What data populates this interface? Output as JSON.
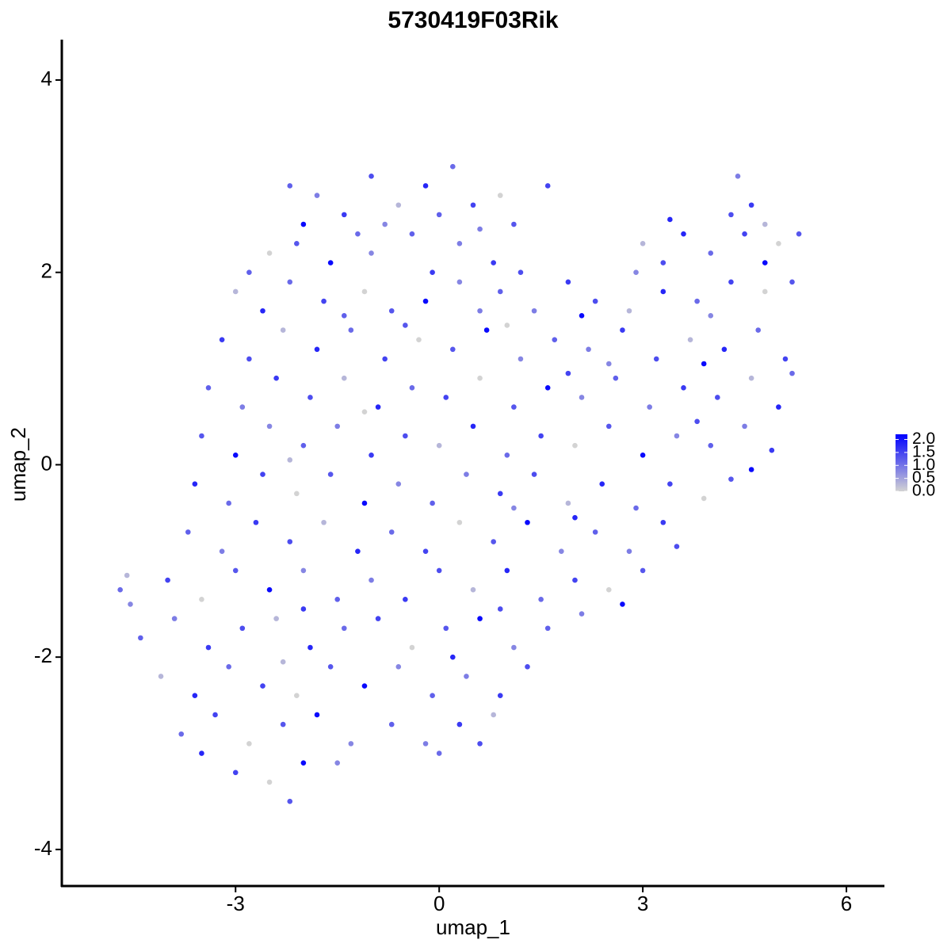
{
  "chart_data": {
    "type": "scatter",
    "title": "5730419F03Rik",
    "x_label": "umap_1",
    "y_label": "umap_2",
    "xlim": [
      -5.56,
      6.56
    ],
    "ylim": [
      -4.38,
      4.42
    ],
    "xticks": [
      -3,
      0,
      3,
      6
    ],
    "yticks": [
      -4,
      -2,
      0,
      2,
      4
    ],
    "color_low": "#d3d3d3",
    "color_high": "#0000ff",
    "clim": [
      0,
      2.2
    ],
    "cticks": [
      {
        "value": 0,
        "label": "0.0"
      },
      {
        "value": 0.5,
        "label": "0.5"
      },
      {
        "value": 1,
        "label": "1.0"
      },
      {
        "value": 1.5,
        "label": "1.5"
      },
      {
        "value": 2,
        "label": "2.0"
      }
    ],
    "x": [
      -2.2,
      -1.8,
      -1.4,
      -1.0,
      -0.6,
      -0.2,
      0.2,
      0.5,
      0.9,
      1.1,
      -2.0,
      -0.8,
      0.0,
      4.4,
      4.6,
      4.3,
      4.8,
      3.4,
      -1.2,
      1.6,
      -2.5,
      -2.1,
      -1.6,
      -1.0,
      -0.4,
      0.3,
      0.8,
      1.2,
      3.0,
      3.6,
      4.0,
      4.5,
      5.0,
      5.3,
      4.8,
      2.9,
      -2.8,
      0.6,
      -0.1,
      3.3,
      -3.0,
      -2.6,
      -2.2,
      -1.7,
      -1.1,
      -0.7,
      -0.2,
      0.3,
      0.9,
      1.4,
      1.9,
      2.3,
      2.8,
      3.3,
      3.8,
      4.3,
      4.8,
      5.2,
      2.1,
      4.0,
      -1.4,
      0.6,
      -3.2,
      -2.8,
      -2.3,
      -1.8,
      -1.3,
      -0.8,
      -0.3,
      0.2,
      0.7,
      1.2,
      1.7,
      2.2,
      2.7,
      3.2,
      3.7,
      4.2,
      4.7,
      5.1,
      1.0,
      -0.5,
      3.9,
      2.5,
      -3.4,
      -2.9,
      -2.4,
      -1.9,
      -1.4,
      -0.9,
      -0.4,
      0.1,
      0.6,
      1.1,
      1.6,
      2.1,
      2.6,
      3.1,
      3.6,
      4.1,
      4.6,
      5.0,
      5.2,
      1.9,
      -1.1,
      -3.5,
      -3.0,
      -2.5,
      -2.0,
      -1.5,
      -1.0,
      -0.5,
      0.0,
      0.5,
      1.0,
      1.5,
      2.0,
      2.5,
      3.0,
      3.5,
      4.0,
      4.5,
      4.9,
      3.8,
      -2.2,
      -3.6,
      -3.1,
      -2.6,
      -2.1,
      -1.6,
      -1.1,
      -0.6,
      -0.1,
      0.4,
      0.9,
      1.4,
      1.9,
      2.4,
      2.9,
      3.4,
      3.9,
      4.3,
      4.6,
      1.1,
      -3.7,
      -3.2,
      -2.7,
      -2.2,
      -1.7,
      -1.2,
      -0.7,
      -0.2,
      0.3,
      0.8,
      1.3,
      1.8,
      2.3,
      2.8,
      3.3,
      3.5,
      -4.6,
      2.0,
      -4.7,
      -4.0,
      -3.5,
      -3.0,
      -2.5,
      -2.0,
      -1.5,
      -1.0,
      -0.5,
      0.0,
      0.5,
      1.0,
      1.5,
      2.0,
      2.5,
      3.0,
      2.7,
      -4.55,
      -4.4,
      -3.9,
      -3.4,
      -2.9,
      -2.4,
      -1.9,
      -1.4,
      -0.9,
      -0.4,
      0.1,
      0.6,
      1.1,
      1.6,
      2.1,
      -2.0,
      0.9,
      -4.1,
      -3.6,
      -3.1,
      -2.6,
      -2.1,
      -1.6,
      -1.1,
      -0.6,
      -0.1,
      0.4,
      0.9,
      1.3,
      -2.3,
      0.2,
      -3.8,
      -3.3,
      -2.8,
      -2.3,
      -1.8,
      -1.3,
      -0.7,
      -0.2,
      0.3,
      0.6,
      0.8,
      -3.5,
      0.0,
      -3.0,
      -2.5,
      -2.2,
      -2.0,
      -1.5
    ],
    "y": [
      2.9,
      2.8,
      2.6,
      3.0,
      2.7,
      2.9,
      3.1,
      2.7,
      2.8,
      2.5,
      2.5,
      2.5,
      2.6,
      3.0,
      2.7,
      2.6,
      2.5,
      2.55,
      2.4,
      2.9,
      2.2,
      2.3,
      2.1,
      2.2,
      2.4,
      2.3,
      2.1,
      2.0,
      2.3,
      2.4,
      2.2,
      2.4,
      2.3,
      2.4,
      2.1,
      2.0,
      2.0,
      2.45,
      2.0,
      2.1,
      1.8,
      1.6,
      1.9,
      1.7,
      1.8,
      1.6,
      1.7,
      1.9,
      1.8,
      1.6,
      1.9,
      1.7,
      1.6,
      1.8,
      1.7,
      1.9,
      1.8,
      1.9,
      1.55,
      1.55,
      1.55,
      1.6,
      1.3,
      1.1,
      1.4,
      1.2,
      1.4,
      1.1,
      1.3,
      1.2,
      1.4,
      1.1,
      1.3,
      1.2,
      1.4,
      1.1,
      1.3,
      1.2,
      1.4,
      1.1,
      1.45,
      1.45,
      1.05,
      1.05,
      0.8,
      0.6,
      0.9,
      0.7,
      0.9,
      0.6,
      0.8,
      0.7,
      0.9,
      0.6,
      0.8,
      0.7,
      0.9,
      0.6,
      0.8,
      0.7,
      0.9,
      0.6,
      0.95,
      0.95,
      0.55,
      0.3,
      0.1,
      0.4,
      0.2,
      0.4,
      0.1,
      0.3,
      0.2,
      0.4,
      0.1,
      0.3,
      0.2,
      0.4,
      0.1,
      0.3,
      0.2,
      0.4,
      0.15,
      0.45,
      0.05,
      -0.2,
      -0.4,
      -0.1,
      -0.3,
      -0.1,
      -0.4,
      -0.2,
      -0.4,
      -0.1,
      -0.3,
      -0.1,
      -0.4,
      -0.2,
      -0.45,
      -0.2,
      -0.35,
      -0.15,
      -0.05,
      -0.45,
      -0.7,
      -0.9,
      -0.6,
      -0.8,
      -0.6,
      -0.9,
      -0.7,
      -0.9,
      -0.6,
      -0.8,
      -0.6,
      -0.9,
      -0.7,
      -0.9,
      -0.6,
      -0.85,
      -1.15,
      -0.55,
      -1.3,
      -1.2,
      -1.4,
      -1.1,
      -1.3,
      -1.1,
      -1.4,
      -1.2,
      -1.4,
      -1.1,
      -1.3,
      -1.1,
      -1.4,
      -1.2,
      -1.3,
      -1.1,
      -1.45,
      -1.45,
      -1.8,
      -1.6,
      -1.9,
      -1.7,
      -1.6,
      -1.9,
      -1.7,
      -1.6,
      -1.9,
      -1.7,
      -1.6,
      -1.9,
      -1.7,
      -1.55,
      -1.5,
      -1.5,
      -2.2,
      -2.4,
      -2.1,
      -2.3,
      -2.4,
      -2.1,
      -2.3,
      -2.1,
      -2.4,
      -2.2,
      -2.4,
      -2.1,
      -2.05,
      -2.0,
      -2.8,
      -2.6,
      -2.9,
      -2.7,
      -2.6,
      -2.9,
      -2.7,
      -2.9,
      -2.7,
      -2.9,
      -2.6,
      -3.0,
      -3.0,
      -3.2,
      -3.3,
      -3.5,
      -3.1,
      -3.1
    ],
    "values": [
      1.2,
      0.9,
      1.6,
      1.4,
      0.3,
      1.8,
      1.1,
      1.5,
      0,
      1.3,
      2.1,
      0.8,
      1.2,
      0.9,
      1.6,
      1.4,
      0.3,
      1.8,
      1.1,
      1.5,
      0,
      1.3,
      2.1,
      0.8,
      1.2,
      0.9,
      1.6,
      1.4,
      0.3,
      1.8,
      1.1,
      1.5,
      0,
      1.3,
      2.1,
      0.8,
      1.2,
      0.9,
      1.6,
      1.4,
      0.3,
      1.8,
      1.1,
      1.5,
      0,
      1.3,
      2.1,
      0.8,
      1.2,
      0.9,
      1.6,
      1.4,
      0.3,
      1.8,
      1.1,
      1.5,
      0,
      1.3,
      2.1,
      0.8,
      1.2,
      0.9,
      1.6,
      1.4,
      0.3,
      1.8,
      1.1,
      1.5,
      0,
      1.3,
      2.1,
      0.8,
      1.2,
      0.9,
      1.6,
      1.4,
      0.3,
      1.8,
      1.1,
      1.5,
      0,
      1.3,
      2.1,
      0.8,
      1.2,
      0.9,
      1.6,
      1.4,
      0.3,
      1.8,
      1.1,
      1.5,
      0,
      1.3,
      2.1,
      0.8,
      1.2,
      0.9,
      1.6,
      1.4,
      0.3,
      1.8,
      1.1,
      1.5,
      0,
      1.3,
      2.1,
      0.8,
      1.2,
      0.9,
      1.6,
      1.4,
      0.3,
      1.8,
      1.1,
      1.5,
      0,
      1.3,
      2.1,
      0.8,
      1.2,
      0.9,
      1.6,
      1.4,
      0.3,
      1.8,
      1.1,
      1.5,
      0,
      1.3,
      2.1,
      0.8,
      1.2,
      0.9,
      1.6,
      1.4,
      0.3,
      1.8,
      1.1,
      1.5,
      0,
      1.3,
      2.1,
      0.8,
      1.2,
      0.9,
      1.6,
      1.4,
      0.3,
      1.8,
      1.1,
      1.5,
      0,
      1.3,
      2.1,
      0.8,
      1.2,
      0.9,
      1.6,
      1.4,
      0.3,
      1.8,
      1.1,
      1.5,
      0,
      1.3,
      2.1,
      0.8,
      1.2,
      0.9,
      1.6,
      1.4,
      0.3,
      1.8,
      1.1,
      1.5,
      0,
      1.3,
      2.1,
      0.8,
      1.2,
      0.9,
      1.6,
      1.4,
      0.3,
      1.8,
      1.1,
      1.5,
      0,
      1.3,
      2.1,
      0.8,
      1.2,
      0.9,
      1.6,
      1.4,
      0.3,
      1.8,
      1.1,
      1.5,
      0,
      1.3,
      2.1,
      0.8,
      1.2,
      0.9,
      1.6,
      1.4,
      0.3,
      1.8,
      1.1,
      1.5,
      0,
      1.3,
      2.1,
      0.8,
      1.2,
      0.9,
      1.6,
      1.4,
      0.3,
      1.8,
      1.1,
      1.5,
      0,
      1.3,
      2.1,
      0.8
    ]
  }
}
